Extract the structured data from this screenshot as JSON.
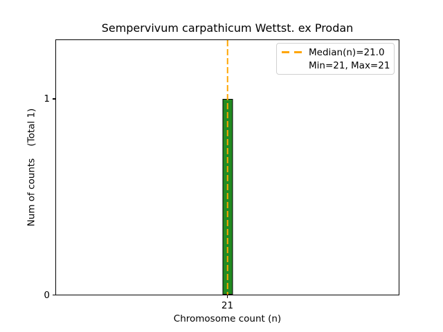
{
  "chart_data": {
    "type": "bar",
    "title": "Sempervivum carpathicum Wettst. ex Prodan",
    "xlabel": "Chromosome count (n)",
    "ylabel": "Num of counts    (Total 1)",
    "categories": [
      21
    ],
    "values": [
      1
    ],
    "total_counts": 1,
    "median_n": 21.0,
    "min_n": 21,
    "max_n": 21,
    "x_tick_labels": [
      "21"
    ],
    "y_tick_labels": [
      "0",
      "1"
    ],
    "ylim": [
      0,
      1.3
    ],
    "grid": false,
    "legend": {
      "position": "upper right",
      "entries": [
        {
          "label": "Median(n)=21.0",
          "marker": "orange-dashed-line"
        },
        {
          "label": "Min=21, Max=21",
          "marker": "none"
        }
      ]
    },
    "colors": {
      "bar_fill": "#228B22",
      "bar_edge": "#000000",
      "median_line": "#FFA500",
      "legend_border": "#d0d0d0",
      "axes": "#000000",
      "text": "#000000",
      "background": "#ffffff"
    }
  }
}
